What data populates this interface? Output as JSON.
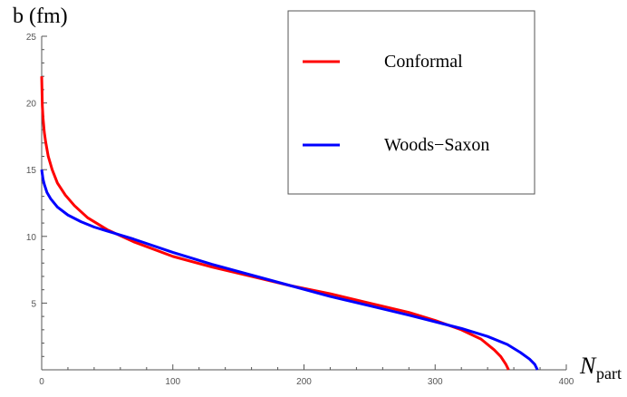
{
  "chart_data": {
    "type": "line",
    "ylabel": "b (fm)",
    "xlabel_main": "N",
    "xlabel_sub": "part",
    "xlim": [
      0,
      400
    ],
    "ylim": [
      0,
      25
    ],
    "x_ticks": [
      0,
      100,
      200,
      300,
      400
    ],
    "y_ticks": [
      5,
      10,
      15,
      20,
      25
    ],
    "grid": false,
    "legend_position": "top-right",
    "series": [
      {
        "name": "Conformal",
        "color": "#ff0000",
        "points": [
          [
            0,
            22.0
          ],
          [
            0.5,
            19.8
          ],
          [
            1,
            18.9
          ],
          [
            2,
            17.8
          ],
          [
            3,
            17.1
          ],
          [
            5,
            16.0
          ],
          [
            8,
            15.0
          ],
          [
            12,
            14.0
          ],
          [
            18,
            13.1
          ],
          [
            25,
            12.3
          ],
          [
            35,
            11.4
          ],
          [
            50,
            10.5
          ],
          [
            70,
            9.6
          ],
          [
            100,
            8.5
          ],
          [
            130,
            7.7
          ],
          [
            160,
            7.0
          ],
          [
            190,
            6.3
          ],
          [
            220,
            5.7
          ],
          [
            250,
            5.0
          ],
          [
            280,
            4.3
          ],
          [
            300,
            3.7
          ],
          [
            320,
            3.0
          ],
          [
            335,
            2.3
          ],
          [
            345,
            1.5
          ],
          [
            350,
            1.0
          ],
          [
            354,
            0.4
          ],
          [
            356,
            0.0
          ]
        ]
      },
      {
        "name": "Woods−Saxon",
        "color": "#0000ff",
        "points": [
          [
            0,
            15.0
          ],
          [
            1,
            14.3
          ],
          [
            2,
            13.9
          ],
          [
            4,
            13.3
          ],
          [
            7,
            12.8
          ],
          [
            12,
            12.2
          ],
          [
            20,
            11.6
          ],
          [
            30,
            11.1
          ],
          [
            40,
            10.7
          ],
          [
            50,
            10.4
          ],
          [
            70,
            9.8
          ],
          [
            100,
            8.8
          ],
          [
            130,
            7.9
          ],
          [
            160,
            7.1
          ],
          [
            190,
            6.3
          ],
          [
            220,
            5.5
          ],
          [
            250,
            4.8
          ],
          [
            280,
            4.1
          ],
          [
            300,
            3.6
          ],
          [
            320,
            3.1
          ],
          [
            340,
            2.5
          ],
          [
            355,
            1.9
          ],
          [
            365,
            1.3
          ],
          [
            372,
            0.8
          ],
          [
            376,
            0.4
          ],
          [
            378,
            0.0
          ]
        ]
      }
    ]
  }
}
